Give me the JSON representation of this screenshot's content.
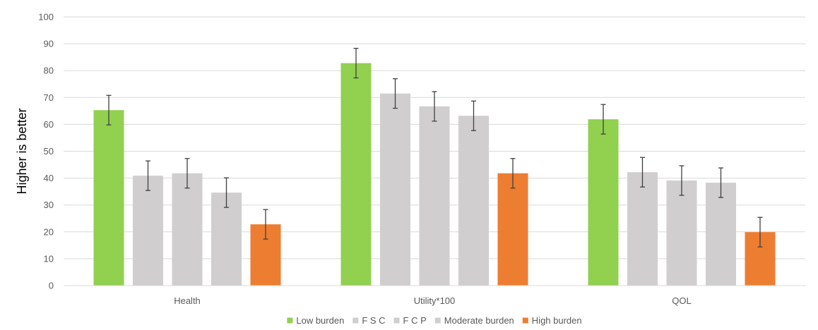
{
  "chart_data": {
    "type": "bar",
    "title": "",
    "xlabel": "",
    "ylabel": "Higher is better",
    "ylim": [
      0,
      100
    ],
    "yticks": [
      0,
      10,
      20,
      30,
      40,
      50,
      60,
      70,
      80,
      90,
      100
    ],
    "grid": true,
    "legend_position": "bottom",
    "categories": [
      "Health",
      "Utility*100",
      "QOL"
    ],
    "series": [
      {
        "name": "Low burden",
        "color": "#92d050",
        "values": [
          65.3,
          82.8,
          61.9
        ],
        "error": [
          5.5,
          5.5,
          5.5
        ]
      },
      {
        "name": "F S C",
        "color": "#d0cece",
        "values": [
          40.9,
          71.5,
          42.2
        ],
        "error": [
          5.5,
          5.5,
          5.5
        ]
      },
      {
        "name": "F C P",
        "color": "#d0cece",
        "values": [
          41.8,
          66.7,
          39.1
        ],
        "error": [
          5.5,
          5.5,
          5.5
        ]
      },
      {
        "name": "Moderate burden",
        "color": "#d0cece",
        "values": [
          34.6,
          63.2,
          38.3
        ],
        "error": [
          5.5,
          5.5,
          5.5
        ]
      },
      {
        "name": "High burden",
        "color": "#ed7d31",
        "values": [
          22.8,
          41.8,
          19.9
        ],
        "error": [
          5.5,
          5.5,
          5.5
        ]
      }
    ]
  }
}
